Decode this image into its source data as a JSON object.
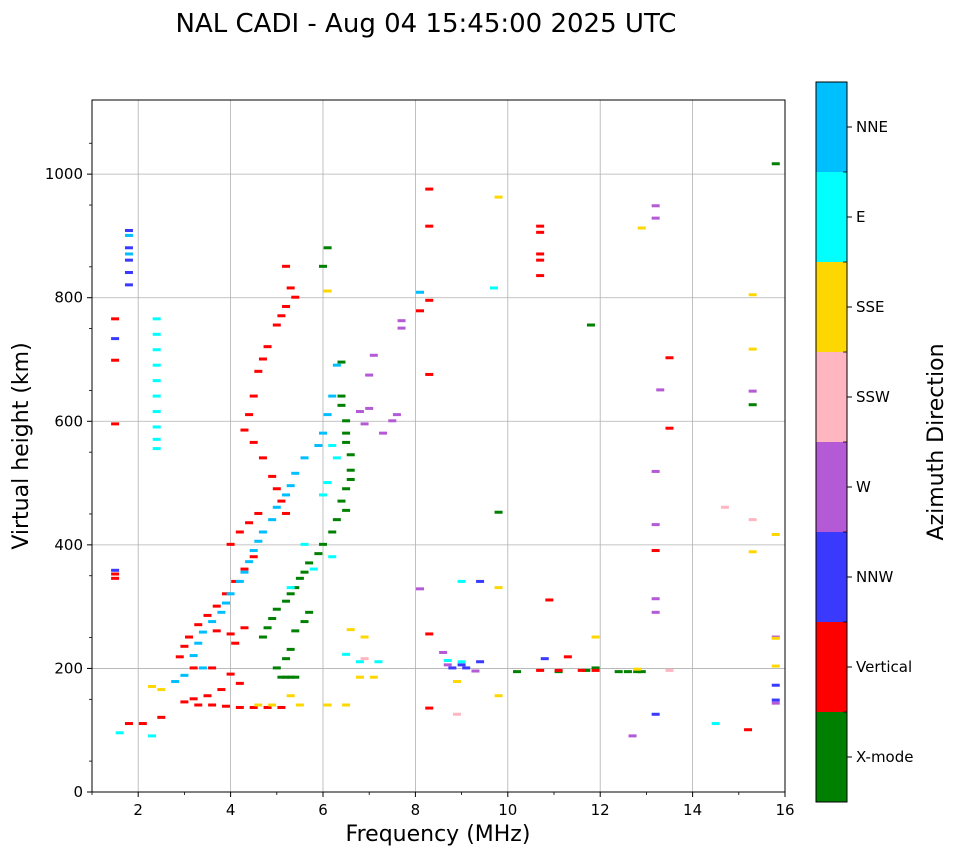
{
  "chart_data": {
    "type": "scatter",
    "title": "NAL CADI - Aug 04 15:45:00 2025 UTC",
    "xlabel": "Frequency (MHz)",
    "ylabel": "Virtual height (km)",
    "xlim": [
      1,
      16
    ],
    "ylim": [
      0,
      1120
    ],
    "xticks": [
      2,
      4,
      6,
      8,
      10,
      12,
      14,
      16
    ],
    "yticks": [
      0,
      200,
      400,
      600,
      800,
      1000
    ],
    "grid": true,
    "colorbar": {
      "label": "Azimuth Direction",
      "categories": [
        {
          "name": "X-mode",
          "color": "#008000"
        },
        {
          "name": "Vertical",
          "color": "#ff0000"
        },
        {
          "name": "NNW",
          "color": "#3a3aff"
        },
        {
          "name": "W",
          "color": "#b45ad6"
        },
        {
          "name": "SSW",
          "color": "#ffb6c1"
        },
        {
          "name": "SSE",
          "color": "#ffd700"
        },
        {
          "name": "E",
          "color": "#00ffff"
        },
        {
          "name": "NNE",
          "color": "#00bfff"
        }
      ]
    },
    "series": [
      {
        "name": "X-mode",
        "points": [
          [
            6.1,
            880
          ],
          [
            6.0,
            850
          ],
          [
            6.4,
            695
          ],
          [
            6.4,
            640
          ],
          [
            6.4,
            625
          ],
          [
            6.5,
            600
          ],
          [
            6.5,
            580
          ],
          [
            6.5,
            565
          ],
          [
            6.6,
            545
          ],
          [
            6.6,
            520
          ],
          [
            6.6,
            505
          ],
          [
            6.5,
            490
          ],
          [
            6.4,
            470
          ],
          [
            6.5,
            455
          ],
          [
            6.3,
            440
          ],
          [
            6.2,
            420
          ],
          [
            6.0,
            400
          ],
          [
            5.9,
            385
          ],
          [
            5.7,
            370
          ],
          [
            5.6,
            355
          ],
          [
            5.5,
            345
          ],
          [
            5.4,
            330
          ],
          [
            5.3,
            320
          ],
          [
            5.2,
            308
          ],
          [
            5.0,
            295
          ],
          [
            4.9,
            280
          ],
          [
            4.8,
            265
          ],
          [
            4.7,
            250
          ],
          [
            5.4,
            260
          ],
          [
            5.6,
            275
          ],
          [
            5.7,
            290
          ],
          [
            5.3,
            230
          ],
          [
            5.2,
            215
          ],
          [
            5.0,
            200
          ],
          [
            5.1,
            185
          ],
          [
            5.2,
            185
          ],
          [
            5.3,
            185
          ],
          [
            5.4,
            185
          ],
          [
            11.8,
            755
          ],
          [
            9.8,
            452
          ],
          [
            15.8,
            1016
          ],
          [
            15.3,
            626
          ],
          [
            10.2,
            194
          ],
          [
            11.1,
            194
          ],
          [
            11.7,
            196
          ],
          [
            11.9,
            200
          ],
          [
            12.4,
            194
          ],
          [
            12.6,
            194
          ],
          [
            12.8,
            194
          ],
          [
            12.9,
            194
          ]
        ]
      },
      {
        "name": "Vertical",
        "points": [
          [
            1.5,
            765
          ],
          [
            1.5,
            698
          ],
          [
            1.5,
            595
          ],
          [
            1.5,
            352
          ],
          [
            1.5,
            345
          ],
          [
            5.2,
            850
          ],
          [
            5.3,
            815
          ],
          [
            5.4,
            800
          ],
          [
            5.2,
            785
          ],
          [
            5.1,
            770
          ],
          [
            5.0,
            755
          ],
          [
            4.8,
            720
          ],
          [
            4.7,
            700
          ],
          [
            4.6,
            680
          ],
          [
            4.5,
            640
          ],
          [
            4.4,
            610
          ],
          [
            4.3,
            585
          ],
          [
            4.5,
            565
          ],
          [
            4.7,
            540
          ],
          [
            4.9,
            510
          ],
          [
            5.0,
            490
          ],
          [
            5.1,
            470
          ],
          [
            5.2,
            450
          ],
          [
            4.6,
            450
          ],
          [
            4.4,
            435
          ],
          [
            4.2,
            420
          ],
          [
            4.0,
            400
          ],
          [
            4.5,
            380
          ],
          [
            4.3,
            360
          ],
          [
            4.1,
            340
          ],
          [
            3.9,
            320
          ],
          [
            3.7,
            300
          ],
          [
            3.5,
            285
          ],
          [
            3.3,
            270
          ],
          [
            3.1,
            250
          ],
          [
            3.0,
            235
          ],
          [
            2.9,
            218
          ],
          [
            3.2,
            200
          ],
          [
            3.6,
            200
          ],
          [
            4.0,
            190
          ],
          [
            4.2,
            175
          ],
          [
            3.8,
            165
          ],
          [
            3.5,
            155
          ],
          [
            3.2,
            150
          ],
          [
            3.0,
            145
          ],
          [
            3.3,
            140
          ],
          [
            3.6,
            140
          ],
          [
            3.9,
            138
          ],
          [
            4.2,
            136
          ],
          [
            4.5,
            136
          ],
          [
            4.8,
            136
          ],
          [
            5.1,
            136
          ],
          [
            4.1,
            240
          ],
          [
            3.7,
            260
          ],
          [
            4.0,
            255
          ],
          [
            4.3,
            265
          ],
          [
            8.3,
            975
          ],
          [
            8.3,
            915
          ],
          [
            8.1,
            778
          ],
          [
            8.3,
            795
          ],
          [
            8.3,
            675
          ],
          [
            8.3,
            255
          ],
          [
            8.3,
            135
          ],
          [
            10.7,
            915
          ],
          [
            10.7,
            905
          ],
          [
            10.7,
            870
          ],
          [
            10.7,
            860
          ],
          [
            10.7,
            835
          ],
          [
            10.9,
            310
          ],
          [
            10.7,
            196
          ],
          [
            11.1,
            196
          ],
          [
            11.3,
            218
          ],
          [
            11.6,
            196
          ],
          [
            11.9,
            196
          ],
          [
            13.5,
            702
          ],
          [
            13.5,
            588
          ],
          [
            13.2,
            390
          ],
          [
            15.2,
            100
          ],
          [
            2.1,
            110
          ],
          [
            1.8,
            110
          ],
          [
            2.5,
            120
          ]
        ]
      },
      {
        "name": "NNW",
        "points": [
          [
            1.5,
            733
          ],
          [
            1.5,
            358
          ],
          [
            1.8,
            908
          ],
          [
            1.8,
            880
          ],
          [
            1.8,
            860
          ],
          [
            1.8,
            840
          ],
          [
            1.8,
            820
          ],
          [
            9.4,
            340
          ],
          [
            9.4,
            210
          ],
          [
            9.0,
            205
          ],
          [
            8.8,
            200
          ],
          [
            9.1,
            200
          ],
          [
            10.8,
            215
          ],
          [
            13.2,
            125
          ],
          [
            15.8,
            172
          ],
          [
            15.8,
            148
          ]
        ]
      },
      {
        "name": "W",
        "points": [
          [
            7.7,
            762
          ],
          [
            7.7,
            750
          ],
          [
            7.6,
            610
          ],
          [
            7.5,
            600
          ],
          [
            7.3,
            580
          ],
          [
            7.0,
            620
          ],
          [
            6.8,
            615
          ],
          [
            6.9,
            595
          ],
          [
            7.1,
            706
          ],
          [
            7.0,
            674
          ],
          [
            13.2,
            948
          ],
          [
            13.2,
            928
          ],
          [
            13.3,
            650
          ],
          [
            13.2,
            518
          ],
          [
            13.2,
            432
          ],
          [
            13.2,
            312
          ],
          [
            13.2,
            290
          ],
          [
            12.7,
            90
          ],
          [
            8.1,
            328
          ],
          [
            8.6,
            225
          ],
          [
            8.7,
            205
          ],
          [
            9.3,
            195
          ],
          [
            15.3,
            648
          ],
          [
            15.8,
            250
          ],
          [
            15.8,
            143
          ]
        ]
      },
      {
        "name": "SSW",
        "points": [
          [
            8.9,
            125
          ],
          [
            14.7,
            460
          ],
          [
            15.3,
            440
          ],
          [
            13.5,
            196
          ],
          [
            6.9,
            215
          ]
        ]
      },
      {
        "name": "SSE",
        "points": [
          [
            6.1,
            810
          ],
          [
            9.8,
            962
          ],
          [
            12.9,
            912
          ],
          [
            15.3,
            804
          ],
          [
            15.3,
            716
          ],
          [
            15.3,
            388
          ],
          [
            15.8,
            416
          ],
          [
            15.8,
            248
          ],
          [
            15.8,
            203
          ],
          [
            6.6,
            262
          ],
          [
            6.9,
            250
          ],
          [
            6.8,
            185
          ],
          [
            7.1,
            185
          ],
          [
            9.8,
            330
          ],
          [
            9.8,
            155
          ],
          [
            8.9,
            178
          ],
          [
            6.5,
            140
          ],
          [
            6.1,
            140
          ],
          [
            5.5,
            140
          ],
          [
            5.3,
            155
          ],
          [
            4.6,
            140
          ],
          [
            4.9,
            140
          ],
          [
            2.3,
            170
          ],
          [
            2.5,
            165
          ],
          [
            11.9,
            250
          ],
          [
            12.8,
            198
          ]
        ]
      },
      {
        "name": "E",
        "points": [
          [
            2.4,
            765
          ],
          [
            2.4,
            740
          ],
          [
            2.4,
            715
          ],
          [
            2.4,
            690
          ],
          [
            2.4,
            665
          ],
          [
            2.4,
            640
          ],
          [
            2.4,
            615
          ],
          [
            2.4,
            590
          ],
          [
            2.4,
            570
          ],
          [
            2.4,
            555
          ],
          [
            1.6,
            95
          ],
          [
            2.3,
            90
          ],
          [
            6.5,
            222
          ],
          [
            6.8,
            210
          ],
          [
            7.2,
            210
          ],
          [
            8.7,
            212
          ],
          [
            9.0,
            210
          ],
          [
            9.7,
            815
          ],
          [
            9.0,
            340
          ],
          [
            14.5,
            110
          ],
          [
            6.2,
            560
          ],
          [
            6.3,
            540
          ],
          [
            6.1,
            500
          ],
          [
            6.0,
            480
          ],
          [
            5.6,
            400
          ],
          [
            5.3,
            330
          ],
          [
            5.8,
            360
          ],
          [
            6.2,
            380
          ]
        ]
      },
      {
        "name": "NNE",
        "points": [
          [
            8.1,
            808
          ],
          [
            6.3,
            690
          ],
          [
            6.2,
            640
          ],
          [
            6.1,
            610
          ],
          [
            6.0,
            580
          ],
          [
            5.9,
            560
          ],
          [
            5.6,
            540
          ],
          [
            5.4,
            515
          ],
          [
            5.3,
            495
          ],
          [
            5.2,
            480
          ],
          [
            5.0,
            460
          ],
          [
            4.9,
            440
          ],
          [
            4.7,
            420
          ],
          [
            4.6,
            405
          ],
          [
            4.5,
            390
          ],
          [
            4.4,
            372
          ],
          [
            4.3,
            355
          ],
          [
            4.2,
            340
          ],
          [
            4.0,
            320
          ],
          [
            3.9,
            305
          ],
          [
            3.8,
            290
          ],
          [
            3.6,
            275
          ],
          [
            3.4,
            258
          ],
          [
            3.3,
            240
          ],
          [
            3.2,
            220
          ],
          [
            3.4,
            200
          ],
          [
            3.0,
            188
          ],
          [
            2.8,
            178
          ],
          [
            1.8,
            900
          ],
          [
            1.8,
            870
          ]
        ]
      }
    ]
  }
}
